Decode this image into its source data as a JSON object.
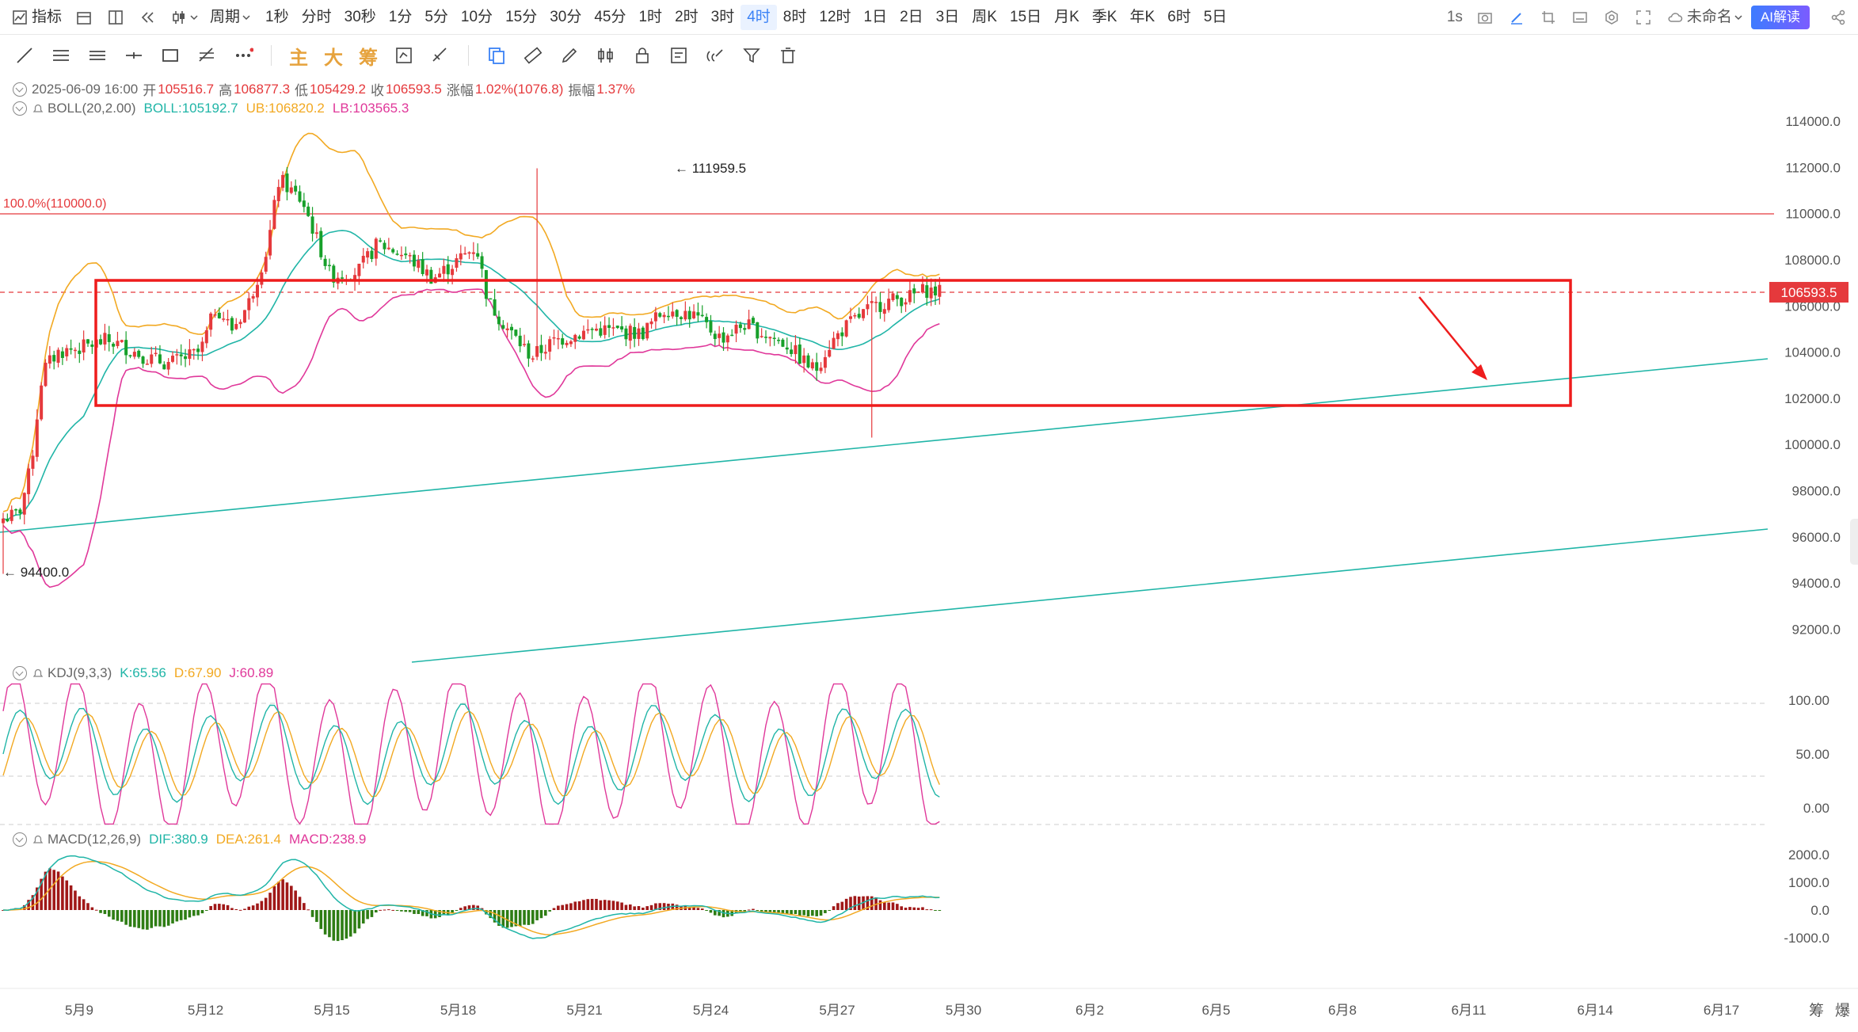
{
  "toolbar": {
    "indicator_label": "指标",
    "period_label": "周期",
    "timeframes": [
      "1秒",
      "分时",
      "30秒",
      "1分",
      "5分",
      "10分",
      "15分",
      "30分",
      "45分",
      "1时",
      "2时",
      "3时",
      "4时",
      "8时",
      "12时",
      "1日",
      "2日",
      "3日",
      "周K",
      "15日",
      "月K",
      "季K",
      "年K",
      "6时",
      "5日"
    ],
    "active_timeframe": "4时",
    "interval_label": "1s",
    "layout_name": "未命名",
    "ai_button": "AI解读"
  },
  "drawbar": {
    "main_label": "主",
    "big_label": "大",
    "chip_label": "筹"
  },
  "ohlc": {
    "date": "2025-06-09 16:00",
    "open_label": "开",
    "open": "105516.7",
    "high_label": "高",
    "high": "106877.3",
    "low_label": "低",
    "low": "105429.2",
    "close_label": "收",
    "close": "106593.5",
    "change_label": "涨幅",
    "change": "1.02%(1076.8)",
    "amp_label": "振幅",
    "amp": "1.37%"
  },
  "boll": {
    "name": "BOLL(20,2.00)",
    "boll": "BOLL:105192.7",
    "ub": "UB:106820.2",
    "lb": "LB:103565.3"
  },
  "kdj": {
    "name": "KDJ(9,3,3)",
    "k": "K:65.56",
    "d": "D:67.90",
    "j": "J:60.89"
  },
  "macd": {
    "name": "MACD(12,26,9)",
    "dif": "DIF:380.9",
    "dea": "DEA:261.4",
    "macd": "MACD:238.9"
  },
  "price_axis": [
    "114000.0",
    "112000.0",
    "110000.0",
    "108000.0",
    "106000.0",
    "104000.0",
    "102000.0",
    "100000.0",
    "98000.0",
    "96000.0",
    "94000.0",
    "92000.0"
  ],
  "current_price_tag": "106593.5",
  "fib_label": "100.0%(110000.0)",
  "high_marker": "111959.5",
  "low_marker": "94400.0",
  "kdj_axis": [
    "100.00",
    "50.00",
    "0.00"
  ],
  "macd_axis": [
    "2000.0",
    "1000.0",
    "0.0",
    "-1000.0"
  ],
  "date_axis": [
    "5月9",
    "5月12",
    "5月15",
    "5月18",
    "5月21",
    "5月24",
    "5月27",
    "5月30",
    "6月2",
    "6月5",
    "6月8",
    "6月11",
    "6月14",
    "6月17"
  ],
  "bottom_buttons": [
    "筹",
    "爆"
  ],
  "colors": {
    "up": "#e5393c",
    "down": "#17a02a",
    "mid": "#20b5a7",
    "upper": "#f2a922",
    "lower": "#e0389a",
    "box": "#ee1c1c"
  }
}
